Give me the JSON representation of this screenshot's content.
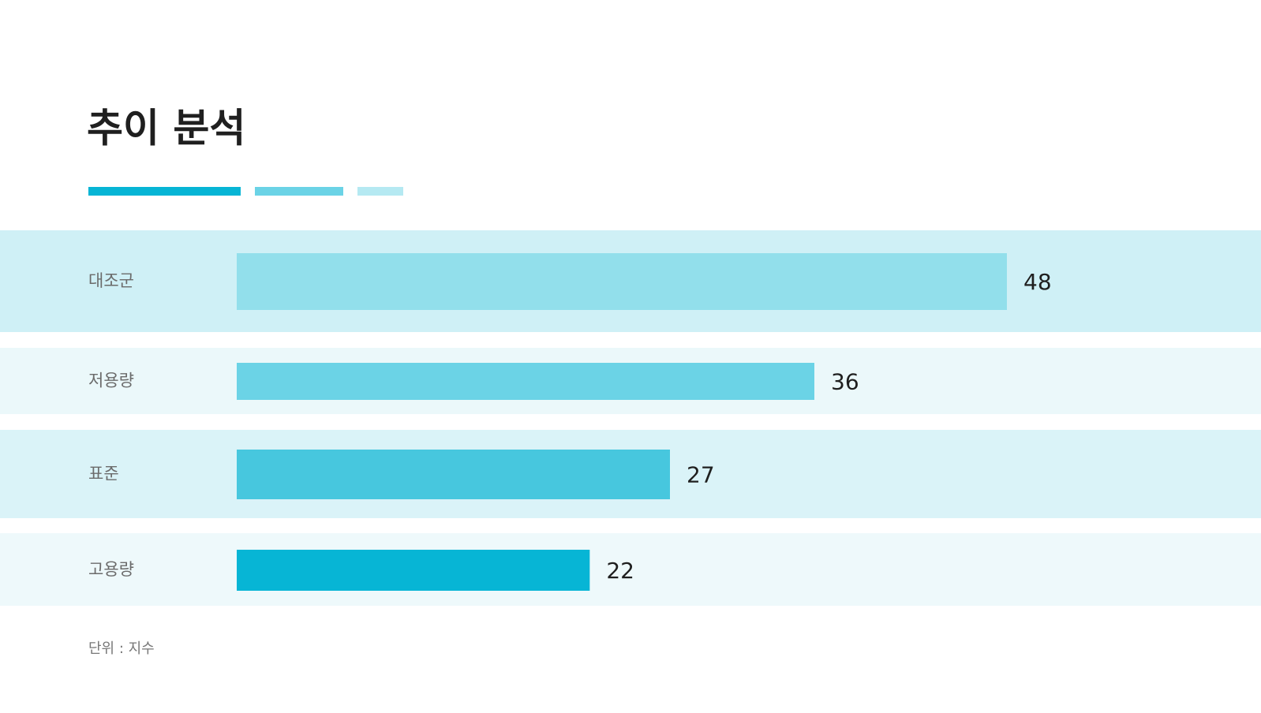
{
  "chart_data": {
    "type": "bar",
    "orientation": "horizontal",
    "title": "추이 분석",
    "categories": [
      "대조군",
      "저용량",
      "표준",
      "고용량"
    ],
    "values": [
      48,
      36,
      27,
      22
    ],
    "colors": [
      "#92dfeb",
      "#6bd3e6",
      "#47c7de",
      "#07b5d5"
    ],
    "note": "단위 :  지수"
  }
}
